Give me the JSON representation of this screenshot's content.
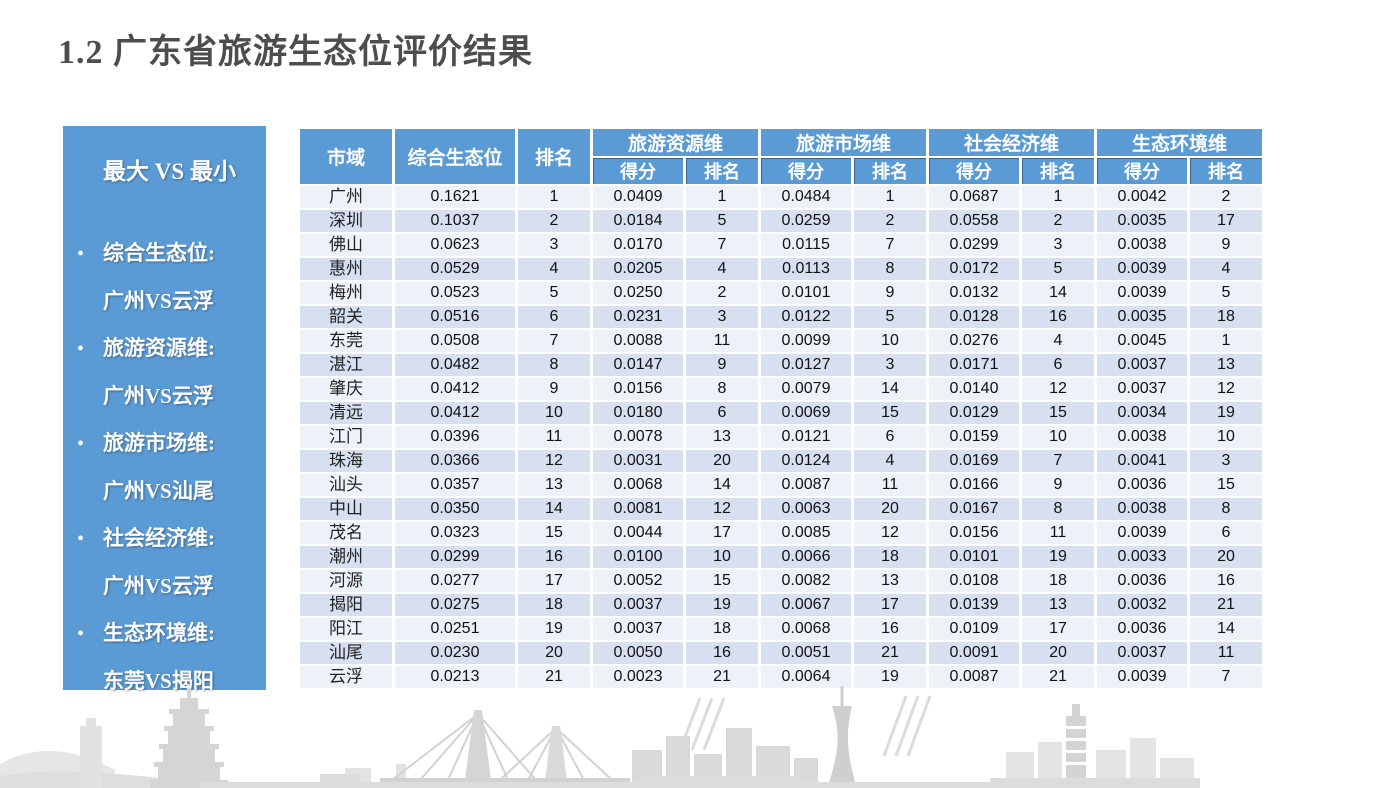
{
  "title": "1.2 广东省旅游生态位评价结果",
  "sidebar": {
    "heading": "最大 VS 最小",
    "items": [
      {
        "label": "综合生态位:",
        "value": "广州VS云浮"
      },
      {
        "label": "旅游资源维:",
        "value": "广州VS云浮"
      },
      {
        "label": "旅游市场维:",
        "value": "广州VS汕尾"
      },
      {
        "label": "社会经济维:",
        "value": "广州VS云浮"
      },
      {
        "label": "生态环境维:",
        "value": "东莞VS揭阳"
      }
    ]
  },
  "table": {
    "header": {
      "city": "市域",
      "overall_niche": "综合生态位",
      "rank": "排名",
      "groups": [
        {
          "label": "旅游资源维"
        },
        {
          "label": "旅游市场维"
        },
        {
          "label": "社会经济维"
        },
        {
          "label": "生态环境维"
        }
      ],
      "sub_score": "得分",
      "sub_rank": "排名"
    },
    "rows": [
      [
        "广州",
        "0.1621",
        "1",
        "0.0409",
        "1",
        "0.0484",
        "1",
        "0.0687",
        "1",
        "0.0042",
        "2"
      ],
      [
        "深圳",
        "0.1037",
        "2",
        "0.0184",
        "5",
        "0.0259",
        "2",
        "0.0558",
        "2",
        "0.0035",
        "17"
      ],
      [
        "佛山",
        "0.0623",
        "3",
        "0.0170",
        "7",
        "0.0115",
        "7",
        "0.0299",
        "3",
        "0.0038",
        "9"
      ],
      [
        "惠州",
        "0.0529",
        "4",
        "0.0205",
        "4",
        "0.0113",
        "8",
        "0.0172",
        "5",
        "0.0039",
        "4"
      ],
      [
        "梅州",
        "0.0523",
        "5",
        "0.0250",
        "2",
        "0.0101",
        "9",
        "0.0132",
        "14",
        "0.0039",
        "5"
      ],
      [
        "韶关",
        "0.0516",
        "6",
        "0.0231",
        "3",
        "0.0122",
        "5",
        "0.0128",
        "16",
        "0.0035",
        "18"
      ],
      [
        "东莞",
        "0.0508",
        "7",
        "0.0088",
        "11",
        "0.0099",
        "10",
        "0.0276",
        "4",
        "0.0045",
        "1"
      ],
      [
        "湛江",
        "0.0482",
        "8",
        "0.0147",
        "9",
        "0.0127",
        "3",
        "0.0171",
        "6",
        "0.0037",
        "13"
      ],
      [
        "肇庆",
        "0.0412",
        "9",
        "0.0156",
        "8",
        "0.0079",
        "14",
        "0.0140",
        "12",
        "0.0037",
        "12"
      ],
      [
        "清远",
        "0.0412",
        "10",
        "0.0180",
        "6",
        "0.0069",
        "15",
        "0.0129",
        "15",
        "0.0034",
        "19"
      ],
      [
        "江门",
        "0.0396",
        "11",
        "0.0078",
        "13",
        "0.0121",
        "6",
        "0.0159",
        "10",
        "0.0038",
        "10"
      ],
      [
        "珠海",
        "0.0366",
        "12",
        "0.0031",
        "20",
        "0.0124",
        "4",
        "0.0169",
        "7",
        "0.0041",
        "3"
      ],
      [
        "汕头",
        "0.0357",
        "13",
        "0.0068",
        "14",
        "0.0087",
        "11",
        "0.0166",
        "9",
        "0.0036",
        "15"
      ],
      [
        "中山",
        "0.0350",
        "14",
        "0.0081",
        "12",
        "0.0063",
        "20",
        "0.0167",
        "8",
        "0.0038",
        "8"
      ],
      [
        "茂名",
        "0.0323",
        "15",
        "0.0044",
        "17",
        "0.0085",
        "12",
        "0.0156",
        "11",
        "0.0039",
        "6"
      ],
      [
        "潮州",
        "0.0299",
        "16",
        "0.0100",
        "10",
        "0.0066",
        "18",
        "0.0101",
        "19",
        "0.0033",
        "20"
      ],
      [
        "河源",
        "0.0277",
        "17",
        "0.0052",
        "15",
        "0.0082",
        "13",
        "0.0108",
        "18",
        "0.0036",
        "16"
      ],
      [
        "揭阳",
        "0.0275",
        "18",
        "0.0037",
        "19",
        "0.0067",
        "17",
        "0.0139",
        "13",
        "0.0032",
        "21"
      ],
      [
        "阳江",
        "0.0251",
        "19",
        "0.0037",
        "18",
        "0.0068",
        "16",
        "0.0109",
        "17",
        "0.0036",
        "14"
      ],
      [
        "汕尾",
        "0.0230",
        "20",
        "0.0050",
        "16",
        "0.0051",
        "21",
        "0.0091",
        "20",
        "0.0037",
        "11"
      ],
      [
        "云浮",
        "0.0213",
        "21",
        "0.0023",
        "21",
        "0.0064",
        "19",
        "0.0087",
        "21",
        "0.0039",
        "7"
      ]
    ]
  },
  "colors": {
    "accent_blue": "#5B9BD5",
    "row_light": "#edf2f9",
    "row_dark": "#d6e0f1",
    "title_gray": "#4d4d4d",
    "skyline_gray": "#dcdcdc"
  }
}
